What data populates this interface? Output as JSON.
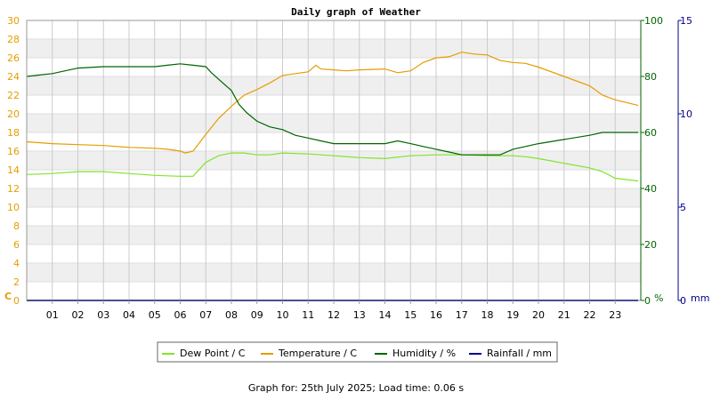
{
  "chart_data": {
    "type": "line",
    "title": "Daily graph of Weather",
    "x_ticks": [
      "01",
      "02",
      "03",
      "04",
      "05",
      "06",
      "07",
      "08",
      "09",
      "10",
      "11",
      "12",
      "13",
      "14",
      "15",
      "16",
      "17",
      "18",
      "19",
      "20",
      "21",
      "22",
      "23"
    ],
    "xlim": [
      0,
      24
    ],
    "axes": {
      "temperature": {
        "unit": "C",
        "min": 0,
        "max": 30,
        "ticks": [
          0,
          2,
          4,
          6,
          8,
          10,
          12,
          14,
          16,
          18,
          20,
          22,
          24,
          26,
          28,
          30
        ],
        "color": "#e69c00"
      },
      "humidity": {
        "unit": "%",
        "min": 0,
        "max": 100,
        "ticks": [
          0,
          20,
          40,
          60,
          80,
          100
        ],
        "color": "#006400"
      },
      "rainfall": {
        "unit": "mm",
        "min": 0,
        "max": 15,
        "ticks": [
          0,
          5,
          10,
          15
        ],
        "color": "#00008b"
      }
    },
    "series": [
      {
        "name": "Dew Point / C",
        "axis": "temperature",
        "color": "#7fe52a",
        "x": [
          0,
          1,
          2,
          3,
          4,
          5,
          6,
          6.5,
          7,
          7.5,
          8,
          8.5,
          9,
          9.5,
          10,
          11,
          12,
          13,
          14,
          15,
          16,
          17,
          18,
          19,
          19.5,
          20,
          21,
          22,
          22.5,
          23,
          23.9
        ],
        "y": [
          13.5,
          13.6,
          13.8,
          13.8,
          13.6,
          13.4,
          13.3,
          13.3,
          14.8,
          15.5,
          15.8,
          15.8,
          15.6,
          15.6,
          15.8,
          15.7,
          15.5,
          15.3,
          15.2,
          15.5,
          15.6,
          15.6,
          15.5,
          15.5,
          15.4,
          15.2,
          14.7,
          14.2,
          13.8,
          13.1,
          12.8
        ]
      },
      {
        "name": "Temperature / C",
        "axis": "temperature",
        "color": "#e69c00",
        "x": [
          0,
          1,
          2,
          3,
          4,
          5,
          5.5,
          6,
          6.2,
          6.5,
          7,
          7.5,
          8,
          8.5,
          9,
          9.5,
          10,
          10.5,
          11,
          11.3,
          11.5,
          12,
          12.5,
          13,
          14,
          14.5,
          15,
          15.5,
          16,
          16.5,
          17,
          17.5,
          18,
          18.5,
          19,
          19.5,
          20,
          21,
          22,
          22.5,
          23,
          23.9
        ],
        "y": [
          17.0,
          16.8,
          16.7,
          16.6,
          16.4,
          16.3,
          16.2,
          16.0,
          15.8,
          16.0,
          17.8,
          19.5,
          20.8,
          22.0,
          22.6,
          23.3,
          24.1,
          24.3,
          24.5,
          25.2,
          24.8,
          24.7,
          24.6,
          24.7,
          24.8,
          24.4,
          24.6,
          25.5,
          26.0,
          26.1,
          26.6,
          26.4,
          26.3,
          25.7,
          25.5,
          25.4,
          25.0,
          24.0,
          23.0,
          22.0,
          21.5,
          20.9
        ]
      },
      {
        "name": "Humidity / %",
        "axis": "humidity",
        "color": "#006400",
        "x": [
          0,
          0.5,
          1,
          1.5,
          2,
          3,
          4,
          5,
          5.5,
          6,
          6.5,
          7,
          7.2,
          7.5,
          8,
          8.3,
          8.6,
          9,
          9.5,
          10,
          10.5,
          11,
          11.5,
          12,
          13,
          14,
          14.5,
          15,
          15.5,
          16,
          16.5,
          17,
          17.5,
          18,
          18.5,
          19,
          20,
          21,
          22,
          22.5,
          23,
          23.9
        ],
        "y": [
          80,
          80.5,
          81,
          82,
          83,
          83.5,
          83.5,
          83.5,
          84,
          84.5,
          84,
          83.5,
          81.5,
          79,
          75,
          70,
          67,
          64,
          62,
          61,
          59,
          58,
          57,
          56,
          56,
          56,
          57,
          56,
          55,
          54,
          53,
          52,
          52,
          52,
          52,
          54,
          56,
          57.5,
          59,
          60,
          60,
          60
        ]
      },
      {
        "name": "Rainfall / mm",
        "axis": "rainfall",
        "color": "#00008b",
        "x": [
          0,
          23.9
        ],
        "y": [
          0,
          0
        ]
      }
    ],
    "legend": {
      "position": "bottom"
    },
    "grid": true
  },
  "footer": "Graph for: 25th July 2025; Load time: 0.06 s"
}
